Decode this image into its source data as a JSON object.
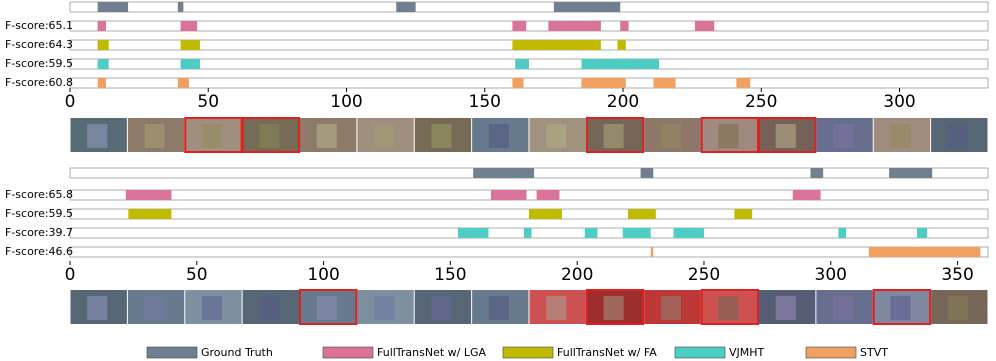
{
  "chart_data": [
    {
      "type": "timeline",
      "xlim": [
        0,
        332
      ],
      "xticks": [
        0,
        50,
        100,
        150,
        200,
        250,
        300
      ],
      "series": [
        {
          "name": "Ground Truth",
          "color": "#708090",
          "segments": [
            [
              10,
              21
            ],
            [
              39,
              41
            ],
            [
              118,
              125
            ],
            [
              175,
              199
            ]
          ]
        },
        {
          "name": "FullTransNet w/ LGA",
          "label": "F-score:65.1",
          "color": "#d9739a",
          "segments": [
            [
              10,
              13
            ],
            [
              40,
              46
            ],
            [
              160,
              165
            ],
            [
              173,
              192
            ],
            [
              199,
              202
            ],
            [
              226,
              233
            ]
          ]
        },
        {
          "name": "FullTransNet w/ FA",
          "label": "F-score:64.3",
          "color": "#c0bb00",
          "segments": [
            [
              10,
              14
            ],
            [
              40,
              47
            ],
            [
              160,
              192
            ],
            [
              198,
              201
            ]
          ]
        },
        {
          "name": "VJMHT",
          "label": "F-score:59.5",
          "color": "#4ecdc4",
          "segments": [
            [
              10,
              14
            ],
            [
              40,
              47
            ],
            [
              161,
              166
            ],
            [
              185,
              213
            ]
          ]
        },
        {
          "name": "STVT",
          "label": "F-score:60.8",
          "color": "#f0a060",
          "segments": [
            [
              10,
              13
            ],
            [
              39,
              43
            ],
            [
              160,
              164
            ],
            [
              185,
              201
            ],
            [
              211,
              219
            ],
            [
              241,
              246
            ]
          ]
        }
      ]
    },
    {
      "type": "timeline",
      "xlim": [
        0,
        362
      ],
      "xticks": [
        0,
        50,
        100,
        150,
        200,
        250,
        300,
        350
      ],
      "series": [
        {
          "name": "Ground Truth",
          "color": "#708090",
          "segments": [
            [
              159,
              183
            ],
            [
              225,
              230
            ],
            [
              292,
              297
            ],
            [
              323,
              340
            ]
          ]
        },
        {
          "name": "FullTransNet w/ LGA",
          "label": "F-score:65.8",
          "color": "#d9739a",
          "segments": [
            [
              22,
              40
            ],
            [
              166,
              180
            ],
            [
              184,
              193
            ],
            [
              285,
              296
            ]
          ]
        },
        {
          "name": "FullTransNet w/ FA",
          "label": "F-score:59.5",
          "color": "#c0bb00",
          "segments": [
            [
              23,
              40
            ],
            [
              181,
              194
            ],
            [
              220,
              231
            ],
            [
              262,
              269
            ]
          ]
        },
        {
          "name": "VJMHT",
          "label": "F-score:39.7",
          "color": "#4ecdc4",
          "segments": [
            [
              153,
              165
            ],
            [
              179,
              182
            ],
            [
              203,
              208
            ],
            [
              218,
              229
            ],
            [
              238,
              250
            ],
            [
              303,
              306
            ],
            [
              334,
              338
            ]
          ]
        },
        {
          "name": "STVT",
          "label": "F-score:46.6",
          "color": "#f0a060",
          "segments": [
            [
              229,
              230
            ],
            [
              315,
              359
            ]
          ]
        }
      ]
    }
  ]
}
